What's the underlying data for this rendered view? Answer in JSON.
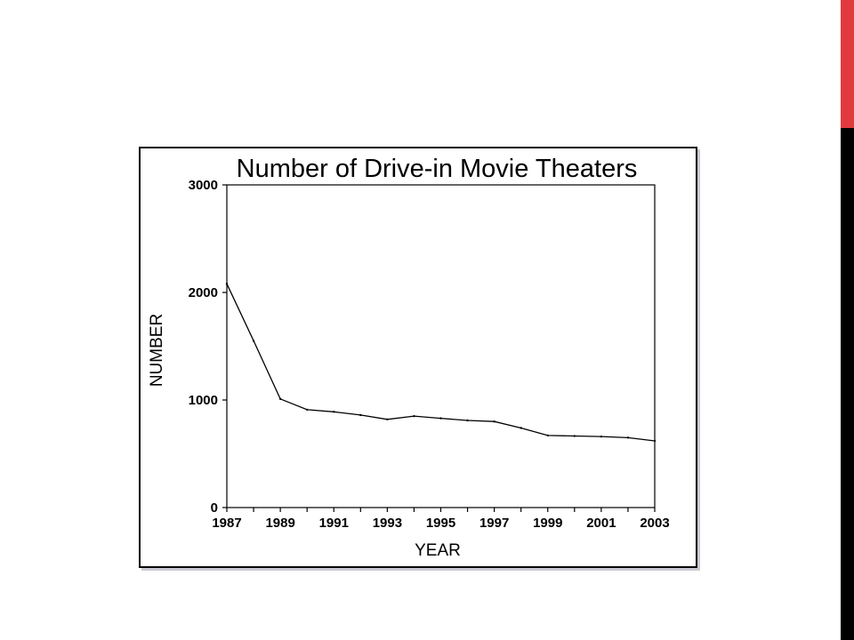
{
  "slide": {
    "accent_colors": {
      "top": "#e03a3e",
      "bottom": "#000000"
    }
  },
  "chart_data": {
    "type": "line",
    "title": "Number of Drive-in Movie Theaters",
    "xlabel": "YEAR",
    "ylabel": "NUMBER",
    "xlim": [
      1987,
      2003
    ],
    "ylim": [
      0,
      3000
    ],
    "x_ticks": [
      1987,
      1989,
      1991,
      1993,
      1995,
      1997,
      1999,
      2001,
      2003
    ],
    "y_ticks": [
      0,
      1000,
      2000,
      3000
    ],
    "grid": false,
    "line_color": "#000000",
    "series": [
      {
        "x": [
          1987,
          1988,
          1989,
          1990,
          1991,
          1992,
          1993,
          1994,
          1995,
          1996,
          1997,
          1998,
          1999,
          2000,
          2001,
          2002,
          2003
        ],
        "values": [
          2080,
          1550,
          1010,
          910,
          890,
          860,
          820,
          850,
          830,
          810,
          800,
          740,
          670,
          665,
          660,
          650,
          620
        ]
      }
    ]
  }
}
